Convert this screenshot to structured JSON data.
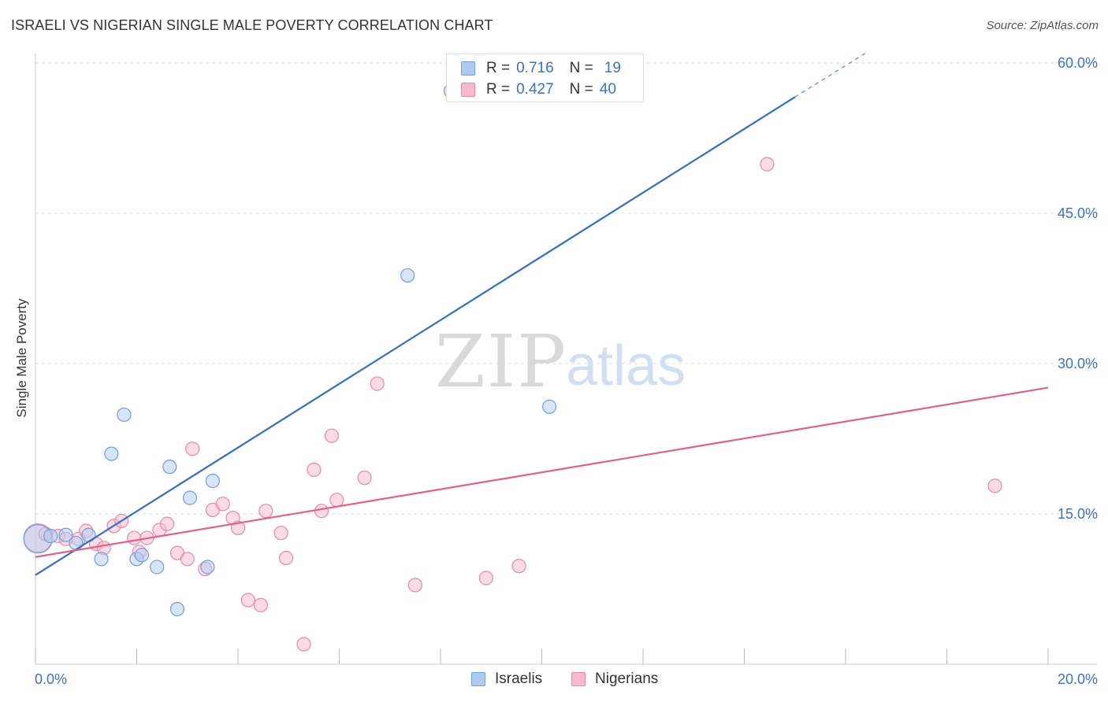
{
  "header": {
    "title": "ISRAELI VS NIGERIAN SINGLE MALE POVERTY CORRELATION CHART",
    "source": "Source: ZipAtlas.com"
  },
  "legend_top": {
    "israelis": {
      "r_label": "R =",
      "r_value": "0.716",
      "n_label": "N =",
      "n_value": "19"
    },
    "nigerians": {
      "r_label": "R =",
      "r_value": "0.427",
      "n_label": "N =",
      "n_value": "40"
    }
  },
  "colors": {
    "israelis_fill": "#aecbf2",
    "israelis_stroke": "#6f9fdc",
    "israelis_line": "#2f6fc9",
    "nigerians_fill": "#f7b9cc",
    "nigerians_stroke": "#e88aa8",
    "nigerians_line": "#e0608e",
    "axis_label": "#3a72c9",
    "grid": "#dddddd"
  },
  "chart_data": {
    "type": "scatter",
    "title": "ISRAELI VS NIGERIAN SINGLE MALE POVERTY CORRELATION CHART",
    "xlabel": "",
    "ylabel": "Single Male Poverty",
    "xlim": [
      0,
      20
    ],
    "ylim": [
      0,
      60
    ],
    "x_tick_labels": [
      "0.0%",
      "20.0%"
    ],
    "y_ticks": [
      15,
      30,
      45,
      60
    ],
    "y_tick_labels": [
      "15.0%",
      "30.0%",
      "45.0%",
      "60.0%"
    ],
    "legend": [
      "Israelis",
      "Nigerians"
    ],
    "watermark": {
      "zip": "ZIP",
      "atlas": "atlas"
    },
    "series": [
      {
        "name": "Israelis",
        "r": 0.716,
        "n": 19,
        "trend": {
          "x0": 0,
          "y0": 8.9,
          "x1": 15.0,
          "y1": 56.6,
          "dash_to_x": 16.4,
          "dash_to_y": 61.0
        },
        "points": [
          {
            "x": 0.05,
            "y": 12.5,
            "big": true
          },
          {
            "x": 0.3,
            "y": 12.8
          },
          {
            "x": 0.6,
            "y": 12.9
          },
          {
            "x": 0.8,
            "y": 12.1
          },
          {
            "x": 1.05,
            "y": 12.9
          },
          {
            "x": 1.3,
            "y": 10.5
          },
          {
            "x": 1.5,
            "y": 21.0
          },
          {
            "x": 1.75,
            "y": 24.9
          },
          {
            "x": 2.0,
            "y": 10.5
          },
          {
            "x": 2.1,
            "y": 10.9
          },
          {
            "x": 2.4,
            "y": 9.7
          },
          {
            "x": 2.65,
            "y": 19.7
          },
          {
            "x": 2.8,
            "y": 5.5
          },
          {
            "x": 3.05,
            "y": 16.6
          },
          {
            "x": 3.4,
            "y": 9.7
          },
          {
            "x": 3.5,
            "y": 18.3
          },
          {
            "x": 7.35,
            "y": 38.8
          },
          {
            "x": 8.2,
            "y": 57.2
          },
          {
            "x": 10.15,
            "y": 25.7
          }
        ]
      },
      {
        "name": "Nigerians",
        "r": 0.427,
        "n": 40,
        "trend": {
          "x0": 0,
          "y0": 10.7,
          "x1": 20,
          "y1": 27.6
        },
        "points": [
          {
            "x": 0.05,
            "y": 12.6,
            "big": true
          },
          {
            "x": 0.2,
            "y": 13.0
          },
          {
            "x": 0.45,
            "y": 12.8
          },
          {
            "x": 0.6,
            "y": 12.5
          },
          {
            "x": 0.85,
            "y": 12.5
          },
          {
            "x": 1.0,
            "y": 13.3
          },
          {
            "x": 1.2,
            "y": 12.0
          },
          {
            "x": 1.35,
            "y": 11.6
          },
          {
            "x": 1.55,
            "y": 13.8
          },
          {
            "x": 1.7,
            "y": 14.3
          },
          {
            "x": 1.95,
            "y": 12.6
          },
          {
            "x": 2.05,
            "y": 11.2
          },
          {
            "x": 2.2,
            "y": 12.6
          },
          {
            "x": 2.45,
            "y": 13.4
          },
          {
            "x": 2.6,
            "y": 14.0
          },
          {
            "x": 2.8,
            "y": 11.1
          },
          {
            "x": 3.0,
            "y": 10.5
          },
          {
            "x": 3.1,
            "y": 21.5
          },
          {
            "x": 3.35,
            "y": 9.5
          },
          {
            "x": 3.5,
            "y": 15.4
          },
          {
            "x": 3.7,
            "y": 16.0
          },
          {
            "x": 3.9,
            "y": 14.6
          },
          {
            "x": 4.0,
            "y": 13.6
          },
          {
            "x": 4.2,
            "y": 6.4
          },
          {
            "x": 4.45,
            "y": 5.9
          },
          {
            "x": 4.55,
            "y": 15.3
          },
          {
            "x": 4.85,
            "y": 13.1
          },
          {
            "x": 4.95,
            "y": 10.6
          },
          {
            "x": 5.3,
            "y": 2.0
          },
          {
            "x": 5.5,
            "y": 19.4
          },
          {
            "x": 5.65,
            "y": 15.3
          },
          {
            "x": 5.85,
            "y": 22.8
          },
          {
            "x": 5.95,
            "y": 16.4
          },
          {
            "x": 6.5,
            "y": 18.6
          },
          {
            "x": 6.75,
            "y": 28.0
          },
          {
            "x": 7.5,
            "y": 7.9
          },
          {
            "x": 8.9,
            "y": 8.6
          },
          {
            "x": 9.55,
            "y": 9.8
          },
          {
            "x": 14.45,
            "y": 49.9
          },
          {
            "x": 18.95,
            "y": 17.8
          }
        ]
      }
    ]
  }
}
